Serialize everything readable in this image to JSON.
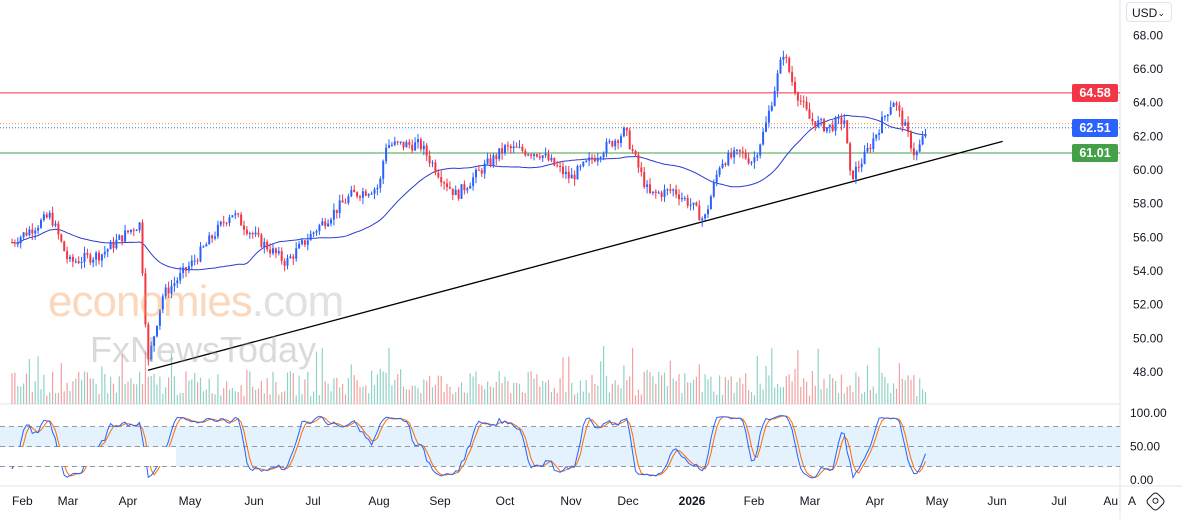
{
  "currency_selector": {
    "value": "USD",
    "icon": "chevron-down-icon"
  },
  "chart_data": {
    "type": "candlestick",
    "price_axis": {
      "ticks": [
        "48.00",
        "50.00",
        "52.00",
        "54.00",
        "56.00",
        "58.00",
        "60.00",
        "62.00",
        "64.00",
        "66.00",
        "68.00"
      ],
      "ylim": [
        47,
        68.5
      ]
    },
    "time_axis": {
      "ticks": [
        "Feb",
        "Mar",
        "Apr",
        "May",
        "Jun",
        "Jul",
        "Aug",
        "Sep",
        "Oct",
        "Nov",
        "Dec",
        "2026",
        "Feb",
        "Mar",
        "Apr",
        "May",
        "Jun",
        "Jul",
        "Au"
      ]
    },
    "close_path": [
      [
        "2025-02-01",
        55.7
      ],
      [
        "2025-02-20",
        57.3
      ],
      [
        "2025-03-01",
        54.5
      ],
      [
        "2025-03-17",
        55.0
      ],
      [
        "2025-04-01",
        56.5
      ],
      [
        "2025-04-05",
        56.8
      ],
      [
        "2025-04-09",
        48.5
      ],
      [
        "2025-04-16",
        52.5
      ],
      [
        "2025-05-01",
        54.5
      ],
      [
        "2025-05-20",
        57.5
      ],
      [
        "2025-06-01",
        56.0
      ],
      [
        "2025-06-16",
        54.5
      ],
      [
        "2025-07-01",
        56.5
      ],
      [
        "2025-07-18",
        58.5
      ],
      [
        "2025-08-01",
        59.0
      ],
      [
        "2025-08-04",
        61.5
      ],
      [
        "2025-08-21",
        61.5
      ],
      [
        "2025-09-01",
        59.5
      ],
      [
        "2025-09-08",
        58.5
      ],
      [
        "2025-09-20",
        60.0
      ],
      [
        "2025-10-02",
        61.3
      ],
      [
        "2025-10-19",
        61.0
      ],
      [
        "2025-11-03",
        59.5
      ],
      [
        "2025-11-17",
        61.0
      ],
      [
        "2025-11-30",
        62.3
      ],
      [
        "2025-12-07",
        60.0
      ],
      [
        "2025-12-12",
        58.5
      ],
      [
        "2025-12-24",
        58.8
      ],
      [
        "2026-01-01",
        58.0
      ],
      [
        "2026-01-08",
        57.0
      ],
      [
        "2026-01-16",
        60.5
      ],
      [
        "2026-01-26",
        61.0
      ],
      [
        "2026-02-01",
        60.5
      ],
      [
        "2026-02-07",
        62.5
      ],
      [
        "2026-02-12",
        65.0
      ],
      [
        "2026-02-16",
        67.0
      ],
      [
        "2026-02-21",
        65.0
      ],
      [
        "2026-03-01",
        63.0
      ],
      [
        "2026-03-10",
        62.5
      ],
      [
        "2026-03-18",
        63.0
      ],
      [
        "2026-03-21",
        59.5
      ],
      [
        "2026-03-28",
        60.8
      ],
      [
        "2026-04-04",
        62.5
      ],
      [
        "2026-04-11",
        64.2
      ],
      [
        "2026-04-17",
        62.5
      ],
      [
        "2026-04-22",
        60.8
      ],
      [
        "2026-04-28",
        62.5
      ]
    ],
    "moving_average": {
      "color": "#2b3ccf"
    },
    "horizontal_levels": [
      {
        "label": "64.58",
        "value": 64.58,
        "color": "#f23645",
        "style": "solid"
      },
      {
        "label": "62.51",
        "value": 62.51,
        "color": "#2962ff",
        "style": "dotted"
      },
      {
        "label": "61.01",
        "value": 61.01,
        "color": "#43a047",
        "style": "solid"
      }
    ],
    "trendline": {
      "from": [
        "2025-04-09",
        48.1
      ],
      "to": [
        "2026-06-04",
        61.7
      ],
      "color": "#000000"
    },
    "up_color": "#2962ff",
    "down_color": "#f23645",
    "stochastic": {
      "ticks": [
        "0.00",
        "50.00",
        "100.00"
      ],
      "upper_band": 80,
      "lower_band": 20,
      "k_color": "#2962ff",
      "d_color": "#ff6d00"
    }
  },
  "watermark": {
    "line1": "economies",
    "line1b": ".com",
    "line2": "FxNewsToday"
  },
  "footer": {
    "auto_label": "A",
    "settings_icon": "settings-icon"
  }
}
